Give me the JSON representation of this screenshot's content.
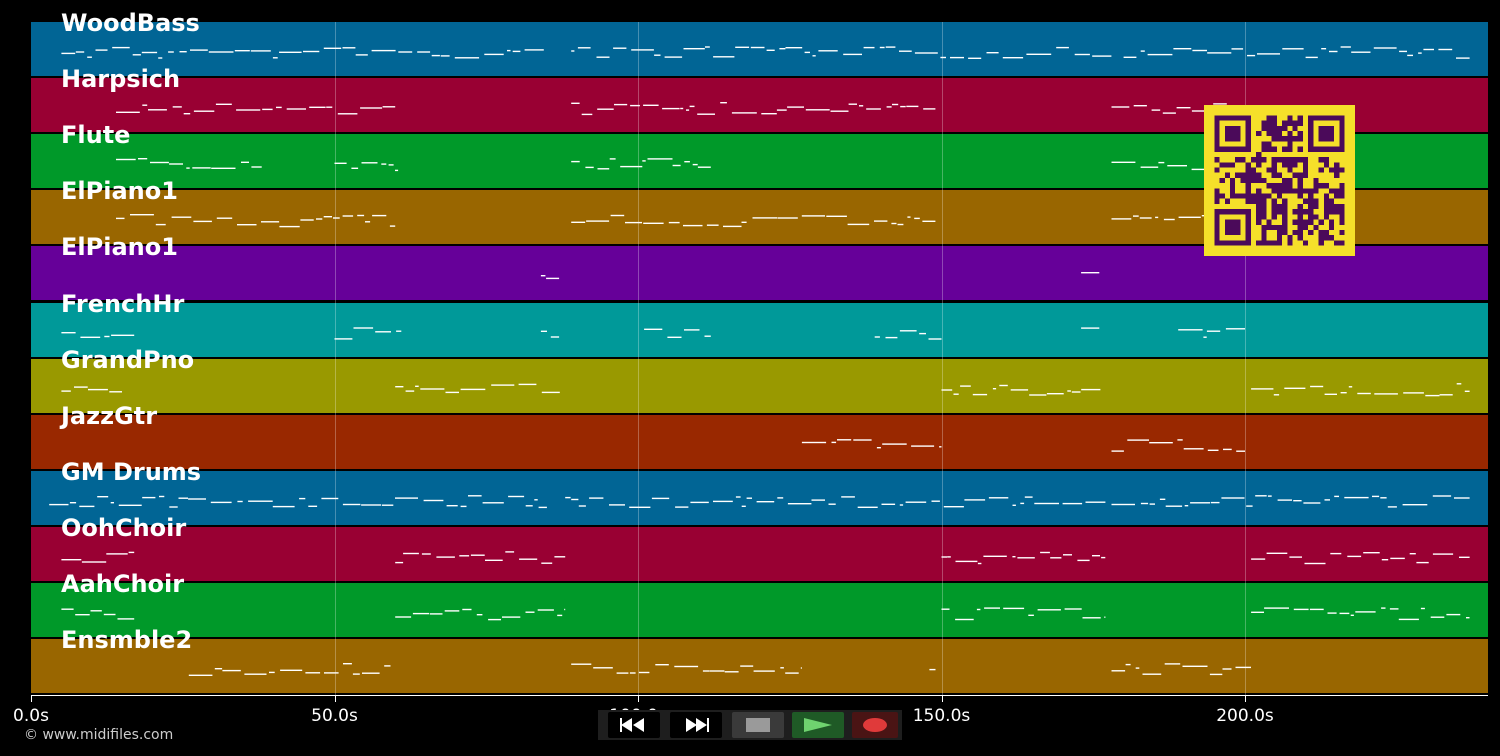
{
  "tracks": [
    {
      "label": "WoodBass",
      "color": "#016595"
    },
    {
      "label": "Harpsich",
      "color": "#990033"
    },
    {
      "label": "Flute",
      "color": "#009929"
    },
    {
      "label": "ElPiano1",
      "color": "#996600"
    },
    {
      "label": "ElPiano1",
      "color": "#660099"
    },
    {
      "label": "FrenchHr",
      "color": "#009999"
    },
    {
      "label": "GrandPno",
      "color": "#999900"
    },
    {
      "label": "JazzGtr",
      "color": "#992800"
    },
    {
      "label": "GM Drums",
      "color": "#016595"
    },
    {
      "label": "OohChoir",
      "color": "#990033"
    },
    {
      "label": "AahChoir",
      "color": "#009929"
    },
    {
      "label": "Ensmble2",
      "color": "#996600"
    }
  ],
  "timeline": {
    "max_seconds": 240,
    "ticks": [
      {
        "value": 0,
        "label": "0.0s"
      },
      {
        "value": 50,
        "label": "50.0s"
      },
      {
        "value": 100,
        "label": "100.0s"
      },
      {
        "value": 150,
        "label": "150.0s"
      },
      {
        "value": 200,
        "label": "200.0s"
      }
    ]
  },
  "copyright": "© www.midifiles.com",
  "transport": {
    "rewind_icon": "rewind-icon",
    "forward_icon": "fast-forward-icon",
    "stop_icon": "stop-icon",
    "play_icon": "play-icon",
    "record_icon": "record-icon",
    "play_color": "#6fd36f",
    "record_color": "#e03a3a",
    "stop_color": "#9a9a9a"
  },
  "qr": {
    "fg": "#4b0a5a",
    "bg": "#f5e02a"
  }
}
